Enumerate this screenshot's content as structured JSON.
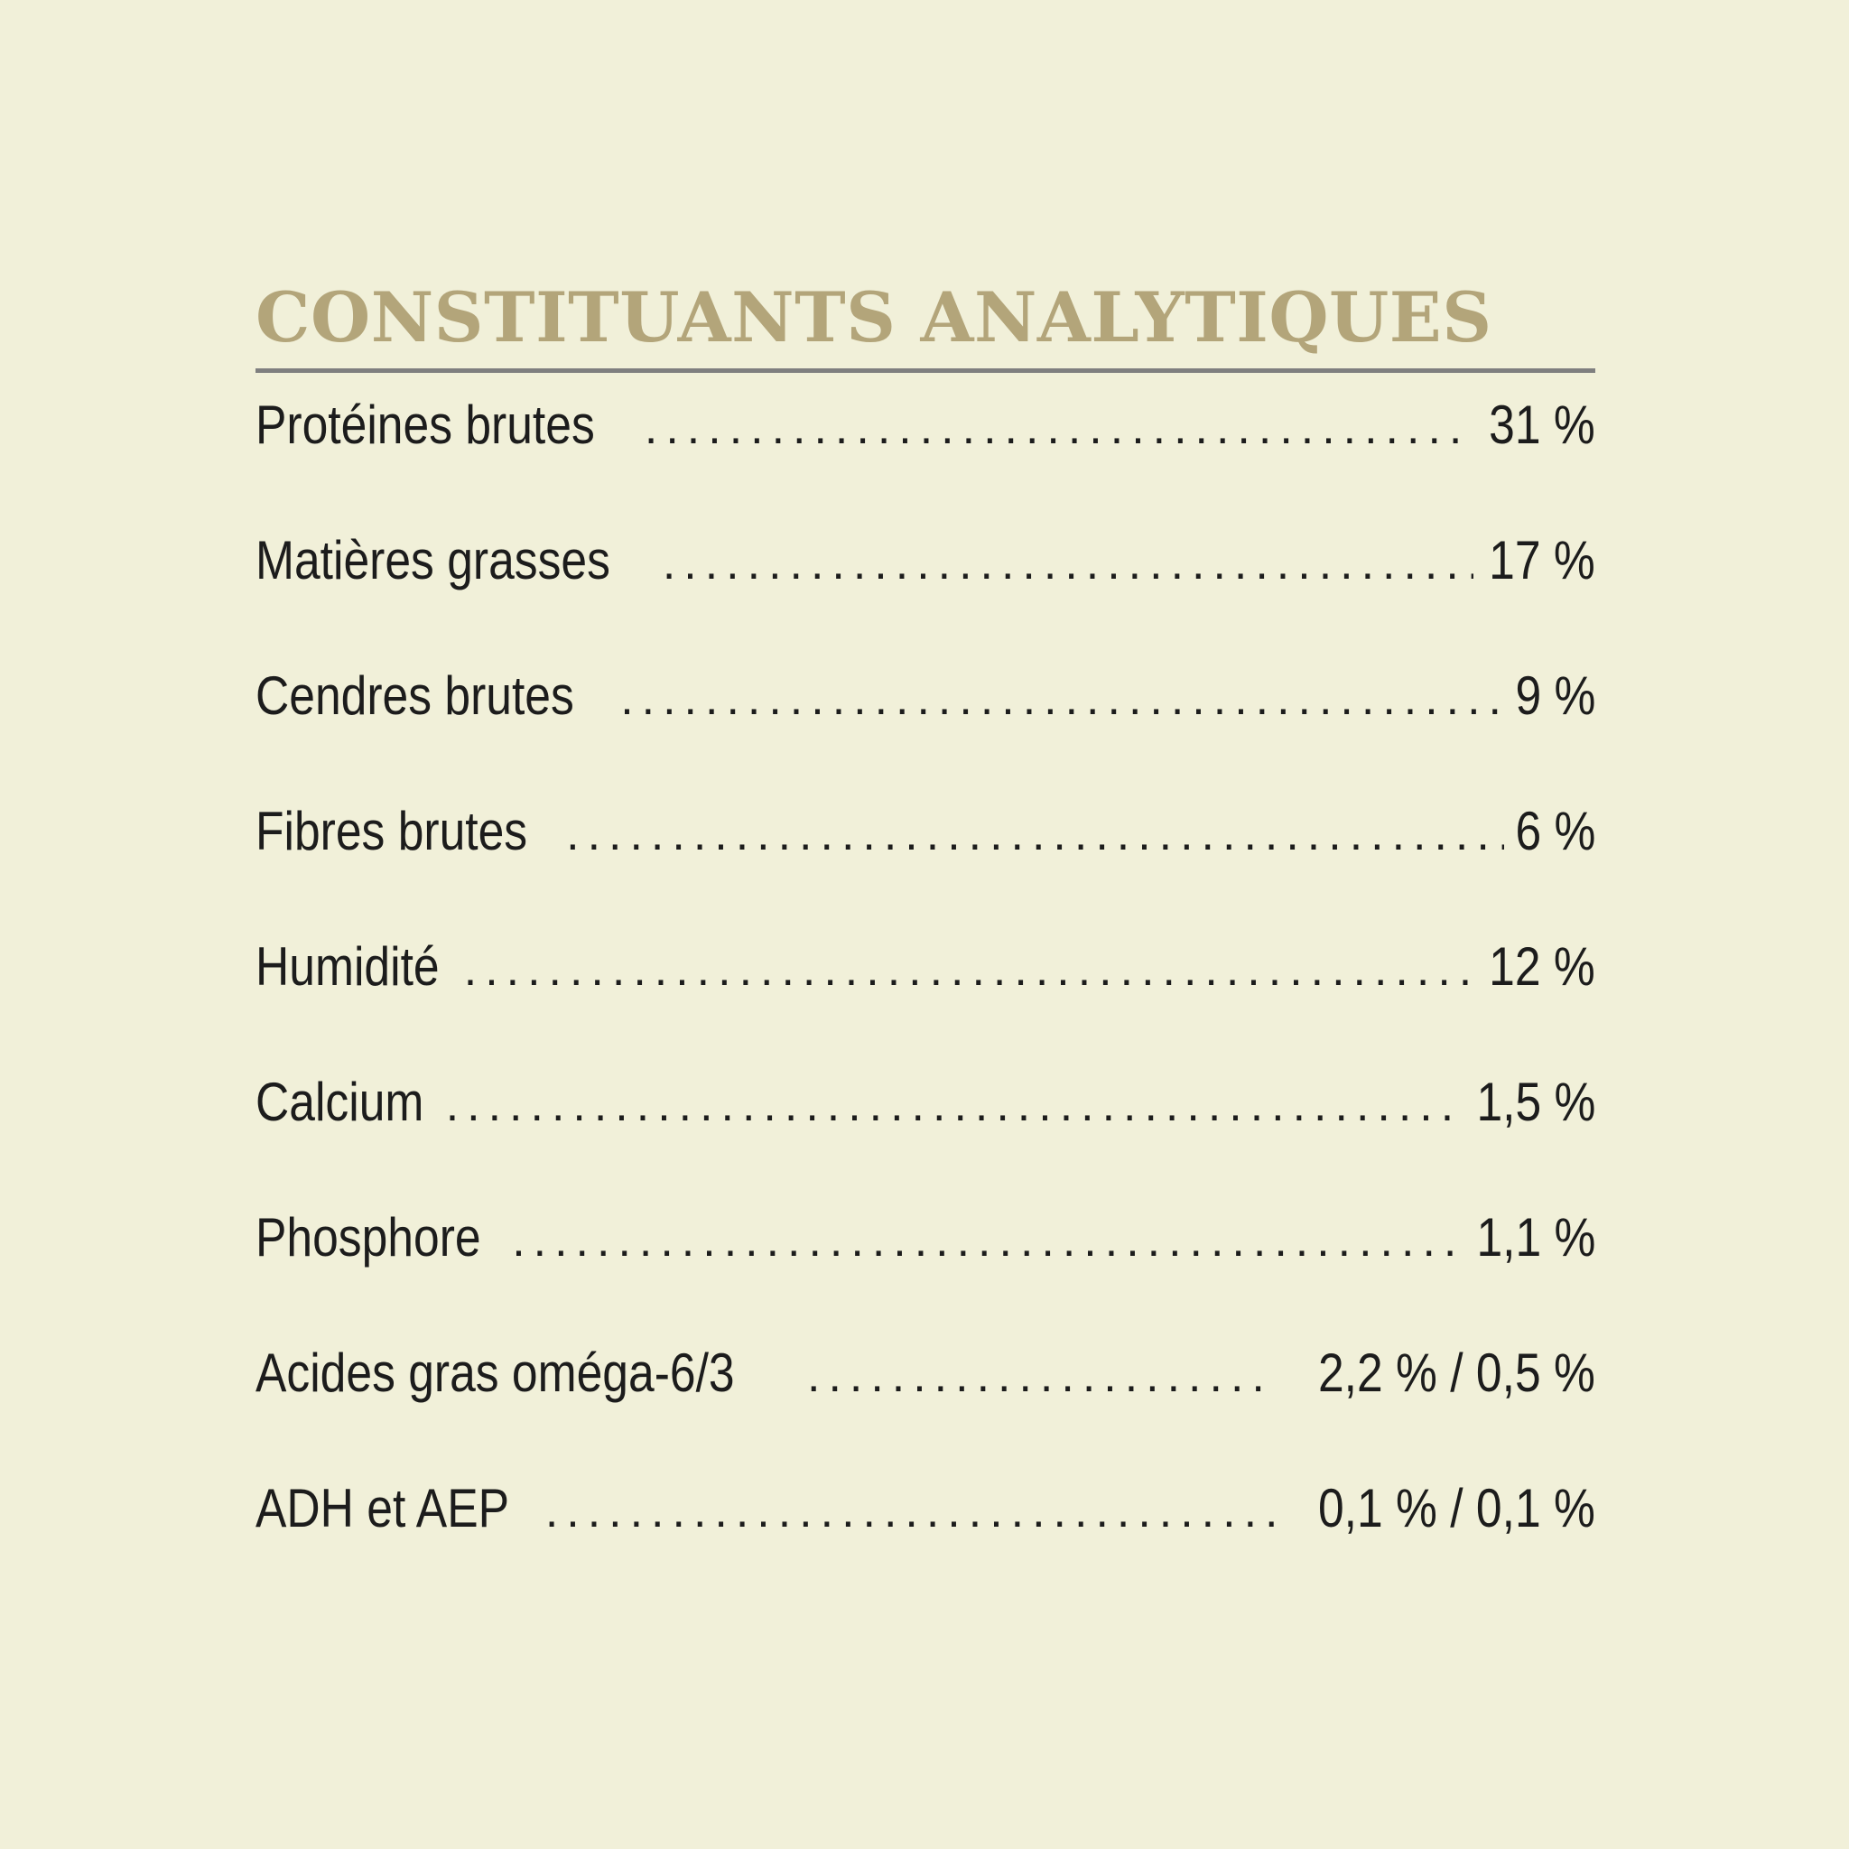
{
  "title": "CONSTITUANTS ANALYTIQUES",
  "rows": [
    {
      "label": "Protéines brutes",
      "value": "31 %"
    },
    {
      "label": "Matières grasses",
      "value": "17 %"
    },
    {
      "label": "Cendres brutes",
      "value": "9 %"
    },
    {
      "label": "Fibres brutes",
      "value": "6 %"
    },
    {
      "label": "Humidité",
      "value": "12 %"
    },
    {
      "label": "Calcium",
      "value": "1,5 %"
    },
    {
      "label": "Phosphore",
      "value": "1,1 %"
    },
    {
      "label": "Acides gras oméga-6/3",
      "value": "2,2 % / 0,5 %"
    },
    {
      "label": "ADH et AEP",
      "value": "0,1 % / 0,1 %"
    }
  ],
  "colors": {
    "background": "#f1f0d9",
    "title": "#b3a57a",
    "rule": "#7f7f7f",
    "text": "#1c1c1c"
  }
}
